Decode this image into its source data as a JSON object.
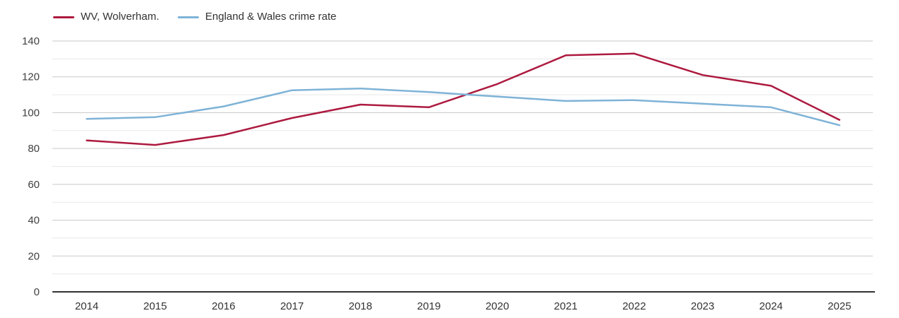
{
  "chart": {
    "background": "#ffffff",
    "axis_line_color": "#333333",
    "major_gridline_color": "#c9c9c9",
    "minor_gridline_color": "#e8e8e8",
    "tick_label_color": "#404040",
    "x_label_color": "#333333"
  },
  "legend": {
    "position": "top-left",
    "items": [
      {
        "label": "WV, Wolverham.",
        "color": "#ad1a3f"
      },
      {
        "label": "England & Wales crime rate",
        "color": "#7fb3d7"
      }
    ]
  },
  "chart_data": {
    "type": "line",
    "x": [
      2014,
      2015,
      2016,
      2017,
      2018,
      2019,
      2020,
      2021,
      2022,
      2023,
      2024,
      2025
    ],
    "series": [
      {
        "name": "WV, Wolverham.",
        "color": "#ad1a3f",
        "values": [
          84.5,
          82,
          87.5,
          97,
          104.5,
          103,
          116,
          132,
          133,
          121,
          115,
          96
        ]
      },
      {
        "name": "England & Wales crime rate",
        "color": "#7fb3d7",
        "values": [
          96.5,
          97.5,
          103.5,
          112.5,
          113.5,
          111.5,
          109,
          106.5,
          107,
          105,
          103,
          93
        ]
      }
    ],
    "ylim": [
      0,
      140
    ],
    "yticks": [
      0,
      20,
      40,
      60,
      80,
      100,
      120,
      140
    ],
    "ytick_interval": 20,
    "minor_ytick_interval": 10,
    "grid": true,
    "legend_position": "top-left",
    "xlabel": "",
    "ylabel": ""
  }
}
